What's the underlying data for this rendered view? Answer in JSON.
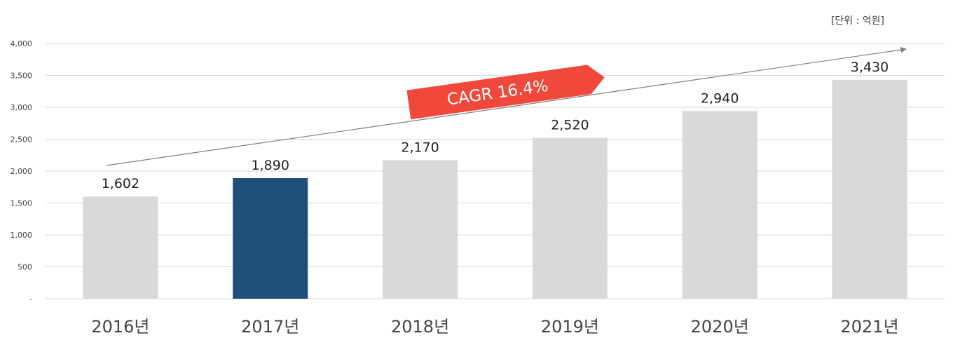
{
  "chart_data": {
    "type": "bar",
    "unit_label": "[단위 : 억원]",
    "categories": [
      "2016년",
      "2017년",
      "2018년",
      "2019년",
      "2020년",
      "2021년"
    ],
    "values": [
      1602,
      1890,
      2170,
      2520,
      2940,
      3430
    ],
    "data_labels": [
      "1,602",
      "1,890",
      "2,170",
      "2,520",
      "2,940",
      "3,430"
    ],
    "highlight_index": 1,
    "ylim": [
      0,
      4000
    ],
    "yticks": [
      0,
      500,
      1000,
      1500,
      2000,
      2500,
      3000,
      3500,
      4000
    ],
    "ytick_labels": [
      "-",
      "500",
      "1,000",
      "1,500",
      "2,000",
      "2,500",
      "3,000",
      "3,500",
      "4,000"
    ],
    "grid": true,
    "annotation": "CAGR 16.4%",
    "colors": {
      "bar": "#d9d9d9",
      "highlight": "#1f4e79",
      "banner": "#f0493b",
      "grid": "#d9d9d9",
      "trend": "#7f7f7f"
    }
  }
}
